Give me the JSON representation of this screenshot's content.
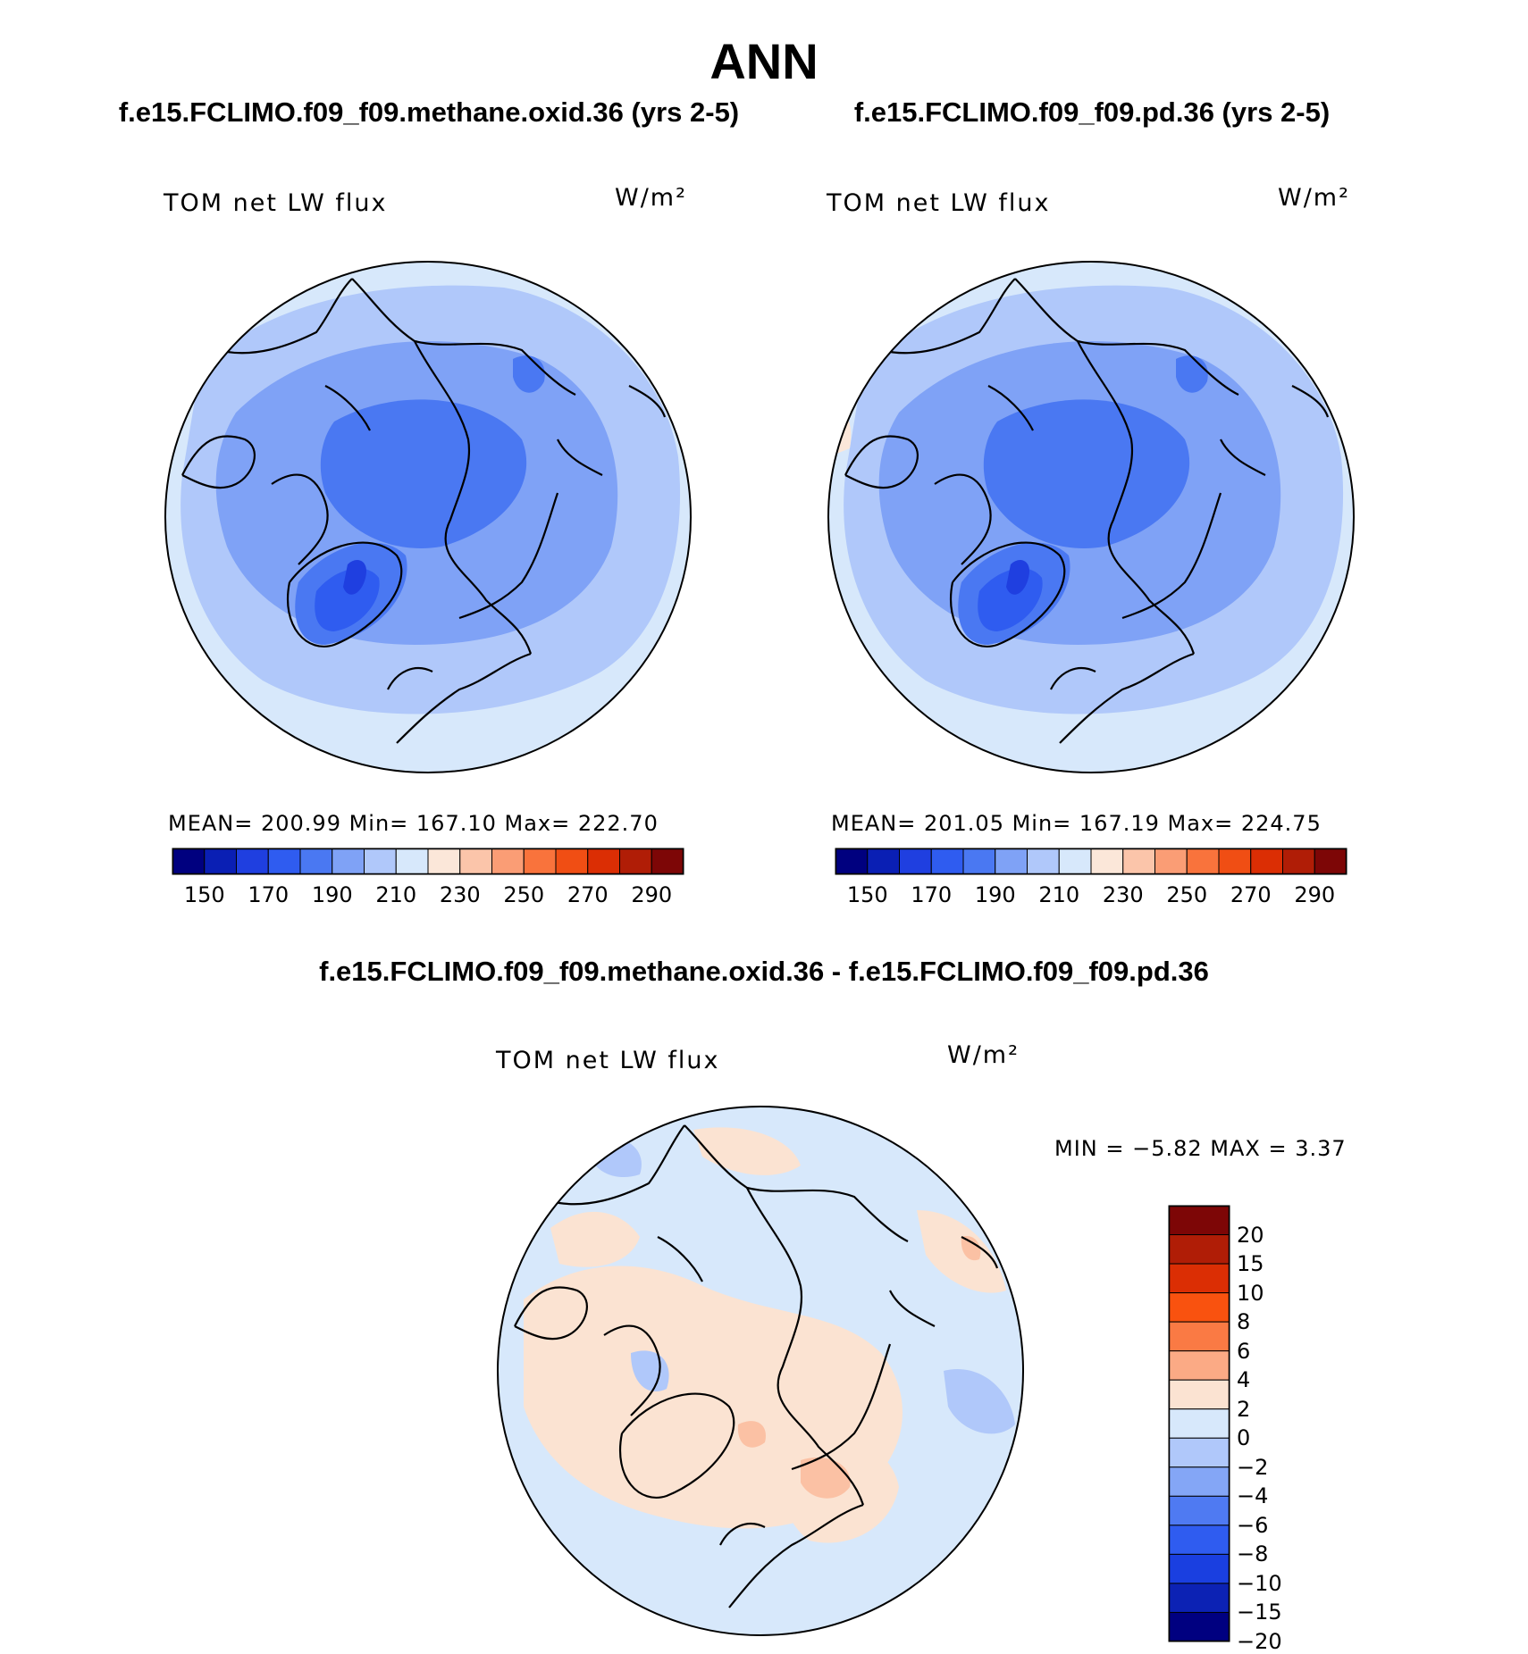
{
  "title": "ANN",
  "panels": [
    {
      "case_title": "f.e15.FCLIMO.f09_f09.methane.oxid.36 (yrs 2-5)",
      "variable": "TOM net LW flux",
      "units": "W/m²",
      "stats": "MEAN= 200.99   Min= 167.10   Max= 222.70",
      "mean": 200.99,
      "min": 167.1,
      "max": 222.7
    },
    {
      "case_title": "f.e15.FCLIMO.f09_f09.pd.36 (yrs 2-5)",
      "variable": "TOM net LW flux",
      "units": "W/m²",
      "stats": "MEAN= 201.05   Min= 167.19   Max= 224.75",
      "mean": 201.05,
      "min": 167.19,
      "max": 224.75
    }
  ],
  "colorbar": {
    "tick_labels": [
      "150",
      "170",
      "190",
      "210",
      "230",
      "250",
      "270",
      "290"
    ],
    "colors": [
      "#00007f",
      "#0a1fb4",
      "#1f3fe0",
      "#2f5cf0",
      "#4a78f2",
      "#7fa2f6",
      "#b0c8fa",
      "#d7e8fb",
      "#fbe7d9",
      "#fbc5aa",
      "#fa9d75",
      "#f9733c",
      "#f04e14",
      "#db2e04",
      "#b01d06",
      "#7d0606"
    ]
  },
  "diff": {
    "title": "f.e15.FCLIMO.f09_f09.methane.oxid.36 - f.e15.FCLIMO.f09_f09.pd.36",
    "variable": "TOM net LW flux",
    "units": "W/m²",
    "stats": "MIN =   −5.82 MAX =     3.37",
    "min": -5.82,
    "max": 3.37,
    "levels": [
      "20",
      "15",
      "10",
      "8",
      "6",
      "4",
      "2",
      "0",
      "−2",
      "−4",
      "−6",
      "−8",
      "−10",
      "−15",
      "−20"
    ],
    "colors": [
      "#7d0606",
      "#b01d06",
      "#db2e04",
      "#f9520f",
      "#fa7a44",
      "#fbaa85",
      "#fbe3d2",
      "#d7e8fb",
      "#b0c8fa",
      "#84a6f6",
      "#4f7af2",
      "#2f5cf0",
      "#1a3fe0",
      "#0c22b4",
      "#000080"
    ]
  }
}
